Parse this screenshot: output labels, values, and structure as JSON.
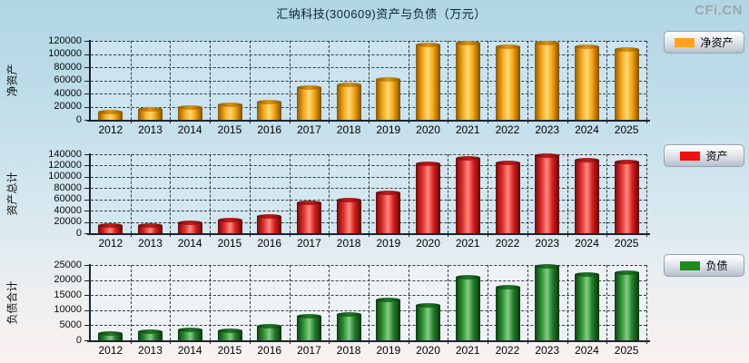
{
  "page": {
    "title": "汇纳科技(300609)资产与负债（万元）",
    "logo": "CFi.CN"
  },
  "colors": {
    "net_assets_bar": "#FFA41C",
    "assets_bar": "#EE1111",
    "liabilities_bar": "#1E8B1E",
    "background_top": "#B2D6E4",
    "background_bottom": "#F9F2F0",
    "grid": "#3A3A3A"
  },
  "chart_data": [
    {
      "type": "bar",
      "name": "net-assets",
      "ylabel": "净资产",
      "legend": "净资产",
      "legend_position": "right",
      "bar_color": "#FFA41C",
      "grid": true,
      "ylim": [
        0,
        120000
      ],
      "ytick_step": 20000,
      "yticks": [
        0,
        20000,
        40000,
        60000,
        80000,
        100000,
        120000
      ],
      "categories": [
        "2012",
        "2013",
        "2014",
        "2015",
        "2016",
        "2017",
        "2018",
        "2019",
        "2020",
        "2021",
        "2022",
        "2023",
        "2024",
        "2025"
      ],
      "values": [
        13000,
        16000,
        19000,
        23000,
        27000,
        50000,
        54000,
        62000,
        115000,
        117000,
        112000,
        118000,
        112000,
        107000
      ]
    },
    {
      "type": "bar",
      "name": "total-assets",
      "ylabel": "资产总计",
      "legend": "资产",
      "legend_position": "right",
      "bar_color": "#EE1111",
      "grid": true,
      "ylim": [
        0,
        140000
      ],
      "ytick_step": 20000,
      "yticks": [
        0,
        20000,
        40000,
        60000,
        80000,
        100000,
        120000,
        140000
      ],
      "categories": [
        "2012",
        "2013",
        "2014",
        "2015",
        "2016",
        "2017",
        "2018",
        "2019",
        "2020",
        "2021",
        "2022",
        "2023",
        "2024",
        "2025"
      ],
      "values": [
        14000,
        15000,
        20000,
        24000,
        30000,
        54000,
        60000,
        73000,
        124000,
        134000,
        126000,
        138000,
        131000,
        127000
      ]
    },
    {
      "type": "bar",
      "name": "total-liabilities",
      "ylabel": "负债合计",
      "legend": "负债",
      "legend_position": "right",
      "bar_color": "#1E8B1E",
      "grid": true,
      "ylim": [
        0,
        25000
      ],
      "ytick_step": 5000,
      "yticks": [
        0,
        5000,
        10000,
        15000,
        20000,
        25000
      ],
      "categories": [
        "2012",
        "2013",
        "2014",
        "2015",
        "2016",
        "2017",
        "2018",
        "2019",
        "2020",
        "2021",
        "2022",
        "2023",
        "2024",
        "2025"
      ],
      "values": [
        2400,
        2900,
        3700,
        3400,
        4800,
        8000,
        8900,
        13600,
        11800,
        21200,
        17800,
        24600,
        22000,
        22500
      ]
    }
  ]
}
